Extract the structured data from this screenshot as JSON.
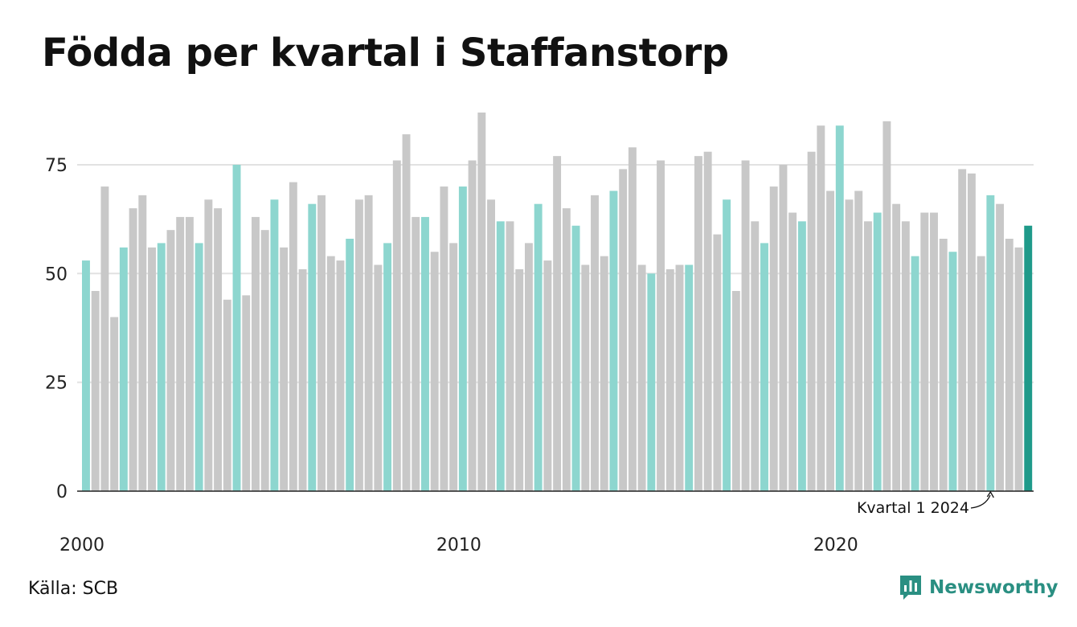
{
  "title": "Födda per kvartal i Staffanstorp",
  "source": "Källa: SCB",
  "brand": "Newsworthy",
  "colors": {
    "q1": "#8dd6cf",
    "other": "#c8c8c8",
    "highlight": "#1f9a8a",
    "grid": "#e2e2e2",
    "axis": "#222222",
    "brand": "#2a8f82"
  },
  "chart_data": {
    "type": "bar",
    "title": "Födda per kvartal i Staffanstorp",
    "xlabel": "",
    "ylabel": "",
    "ylim": [
      0,
      87
    ],
    "yticks": [
      0,
      25,
      50,
      75
    ],
    "grid": true,
    "xtick_labels": [
      {
        "year": 2000,
        "label": "2000"
      },
      {
        "year": 2010,
        "label": "2010"
      },
      {
        "year": 2020,
        "label": "2020"
      }
    ],
    "start_year": 2000,
    "annotation": {
      "text": "Kvartal 1 2024",
      "index": 96
    },
    "values": [
      53,
      46,
      70,
      40,
      56,
      65,
      68,
      56,
      57,
      60,
      63,
      63,
      57,
      67,
      65,
      44,
      75,
      45,
      63,
      60,
      67,
      56,
      71,
      51,
      66,
      68,
      54,
      53,
      58,
      67,
      68,
      52,
      57,
      76,
      82,
      63,
      63,
      55,
      70,
      57,
      70,
      76,
      87,
      67,
      62,
      62,
      51,
      57,
      66,
      53,
      77,
      65,
      61,
      52,
      68,
      54,
      69,
      74,
      79,
      52,
      50,
      76,
      51,
      52,
      52,
      77,
      78,
      59,
      67,
      46,
      76,
      62,
      57,
      70,
      75,
      64,
      62,
      78,
      84,
      69,
      84,
      67,
      69,
      62,
      64,
      85,
      66,
      62,
      54,
      64,
      64,
      58,
      55,
      74,
      73,
      54,
      68,
      66,
      58,
      56,
      61
    ]
  }
}
